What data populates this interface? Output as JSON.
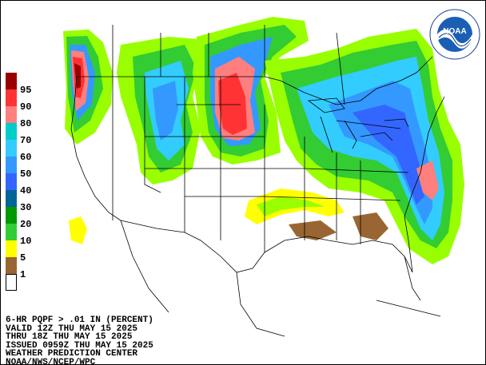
{
  "legend": {
    "labels": [
      "95",
      "90",
      "80",
      "70",
      "60",
      "50",
      "40",
      "30",
      "20",
      "10",
      "5",
      "1"
    ],
    "colors": [
      "#990000",
      "#ff3333",
      "#ff7f7f",
      "#00cccc",
      "#33ccff",
      "#3399ff",
      "#3366ff",
      "#006699",
      "#009900",
      "#33cc33",
      "#99ff00",
      "#ffff00",
      "#996633",
      "#ffffff"
    ]
  },
  "caption": {
    "line1": "6-HR PQPF > .01 IN (PERCENT)",
    "line2": "VALID 12Z THU MAY 15 2025",
    "line3": "THRU 18Z THU MAY 15 2025",
    "line4": "ISSUED 0959Z THU MAY 15 2025",
    "line5": "WEATHER PREDICTION CENTER",
    "line6": "NOAA/NWS/NCEP/WPC"
  },
  "logo": {
    "text": "NOAA",
    "ring_text": "NATIONAL OCEANIC AND ATMOSPHERIC ADMINISTRATION"
  }
}
